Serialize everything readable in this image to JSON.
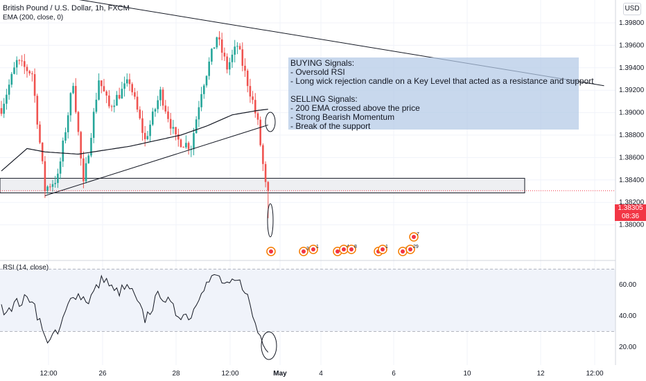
{
  "header": {
    "title": "British Pound / U.S. Dollar, 1h, FXCM",
    "ema_legend": "EMA (200, close, 0)",
    "rsi_legend": "RSI (14, close)",
    "currency": "USD"
  },
  "price_tag": {
    "price": "1.38305",
    "countdown": "08:36"
  },
  "annotation": {
    "lines": [
      "BUYING Signals:",
      "- Oversold RSI",
      "- Long wick rejection candle on a Key Level that acted as a resistance and support",
      "",
      "SELLING Signals:",
      "- 200 EMA crossed above the price",
      "- Strong Bearish Momentum",
      "- Break of the support"
    ]
  },
  "event_icons": [
    "",
    "3",
    "1",
    "6",
    "4",
    "8",
    "5",
    "1",
    "2",
    "29",
    "7"
  ],
  "colors": {
    "up": "#26a69a",
    "down": "#ef5350",
    "ema": "#131722",
    "rsi": "#131722",
    "rsi_band": "#f0f3fa",
    "price_tag": "#f23645",
    "signal_box": "#b3c9e6"
  },
  "chart_data": [
    {
      "type": "candlestick",
      "title": "British Pound / U.S. Dollar, 1h, FXCM",
      "x_ticks": [
        "12:00",
        "26",
        "28",
        "12:00",
        "May",
        "4",
        "6",
        "10",
        "12",
        "12:00"
      ],
      "y_ticks": [
        "1.39800",
        "1.39600",
        "1.39400",
        "1.39200",
        "1.39000",
        "1.38800",
        "1.38600",
        "1.38400",
        "1.38200",
        "1.38000"
      ],
      "ylim": [
        1.3795,
        1.3995
      ],
      "last_price": 1.38305,
      "key_level": [
        1.38285,
        1.38415
      ],
      "trendlines": [
        {
          "name": "descending resistance",
          "from": [
            0,
            1.4012
          ],
          "to": [
            235,
            1.3924
          ]
        },
        {
          "name": "ascending support",
          "from": [
            17,
            1.3826
          ],
          "to": [
            104,
            1.3889
          ]
        }
      ],
      "ema": {
        "name": "EMA (200, close, 0)"
      },
      "bars_keypoints": [
        [
          0,
          1.3904
        ],
        [
          6,
          1.3945
        ],
        [
          12,
          1.3935
        ],
        [
          17,
          1.3832
        ],
        [
          22,
          1.3842
        ],
        [
          28,
          1.3928
        ],
        [
          32,
          1.3835
        ],
        [
          38,
          1.393
        ],
        [
          42,
          1.3905
        ],
        [
          50,
          1.3928
        ],
        [
          56,
          1.3875
        ],
        [
          62,
          1.3918
        ],
        [
          68,
          1.3876
        ],
        [
          74,
          1.387
        ],
        [
          78,
          1.392
        ],
        [
          84,
          1.3968
        ],
        [
          88,
          1.394
        ],
        [
          92,
          1.396
        ],
        [
          95,
          1.3935
        ],
        [
          98,
          1.391
        ],
        [
          100,
          1.389
        ],
        [
          103,
          1.3835
        ],
        [
          104,
          1.3829
        ]
      ]
    },
    {
      "type": "line",
      "title": "RSI (14, close)",
      "y_ticks": [
        "60.00",
        "40.00",
        "20.00"
      ],
      "ylim": [
        12,
        78
      ],
      "band": [
        30,
        70
      ],
      "keypoints": [
        [
          0,
          44
        ],
        [
          6,
          48
        ],
        [
          12,
          52
        ],
        [
          17,
          25
        ],
        [
          22,
          28
        ],
        [
          28,
          55
        ],
        [
          34,
          50
        ],
        [
          40,
          65
        ],
        [
          44,
          55
        ],
        [
          50,
          58
        ],
        [
          56,
          38
        ],
        [
          62,
          55
        ],
        [
          68,
          42
        ],
        [
          74,
          40
        ],
        [
          78,
          58
        ],
        [
          84,
          66
        ],
        [
          88,
          58
        ],
        [
          92,
          62
        ],
        [
          95,
          58
        ],
        [
          98,
          40
        ],
        [
          100,
          30
        ],
        [
          103,
          22
        ],
        [
          104,
          20
        ]
      ]
    }
  ]
}
